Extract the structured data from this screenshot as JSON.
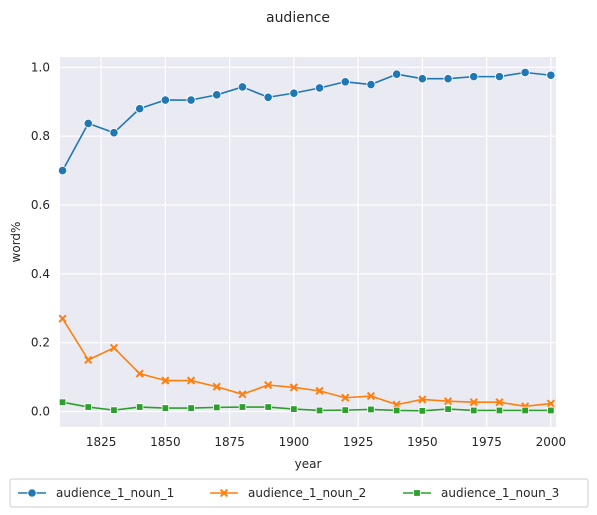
{
  "chart_data": {
    "type": "line",
    "title": "audience",
    "xlabel": "year",
    "ylabel": "word%",
    "xlim": [
      1809,
      2002
    ],
    "ylim": [
      -0.045,
      1.03
    ],
    "xticks": [
      1825,
      1850,
      1875,
      1900,
      1925,
      1950,
      1975,
      2000
    ],
    "yticks": [
      0.0,
      0.2,
      0.4,
      0.6,
      0.8,
      1.0
    ],
    "grid": true,
    "legend_position": "bottom",
    "x": [
      1810,
      1820,
      1830,
      1840,
      1850,
      1860,
      1870,
      1880,
      1890,
      1900,
      1910,
      1920,
      1930,
      1940,
      1950,
      1960,
      1970,
      1980,
      1990,
      2000
    ],
    "series": [
      {
        "name": "audience_1_noun_1",
        "color": "#1f77b4",
        "marker": "circle",
        "values": [
          0.7,
          0.837,
          0.81,
          0.88,
          0.905,
          0.905,
          0.92,
          0.943,
          0.913,
          0.925,
          0.94,
          0.958,
          0.95,
          0.98,
          0.967,
          0.967,
          0.973,
          0.973,
          0.985,
          0.977
        ]
      },
      {
        "name": "audience_1_noun_2",
        "color": "#ff7f0e",
        "marker": "x",
        "values": [
          0.27,
          0.15,
          0.185,
          0.11,
          0.09,
          0.09,
          0.072,
          0.05,
          0.077,
          0.07,
          0.06,
          0.04,
          0.045,
          0.02,
          0.035,
          0.03,
          0.027,
          0.027,
          0.015,
          0.023
        ]
      },
      {
        "name": "audience_1_noun_3",
        "color": "#2ca02c",
        "marker": "square",
        "values": [
          0.027,
          0.013,
          0.004,
          0.013,
          0.01,
          0.01,
          0.012,
          0.013,
          0.013,
          0.007,
          0.003,
          0.004,
          0.006,
          0.003,
          0.002,
          0.007,
          0.003,
          0.003,
          0.003,
          0.003
        ]
      }
    ]
  }
}
